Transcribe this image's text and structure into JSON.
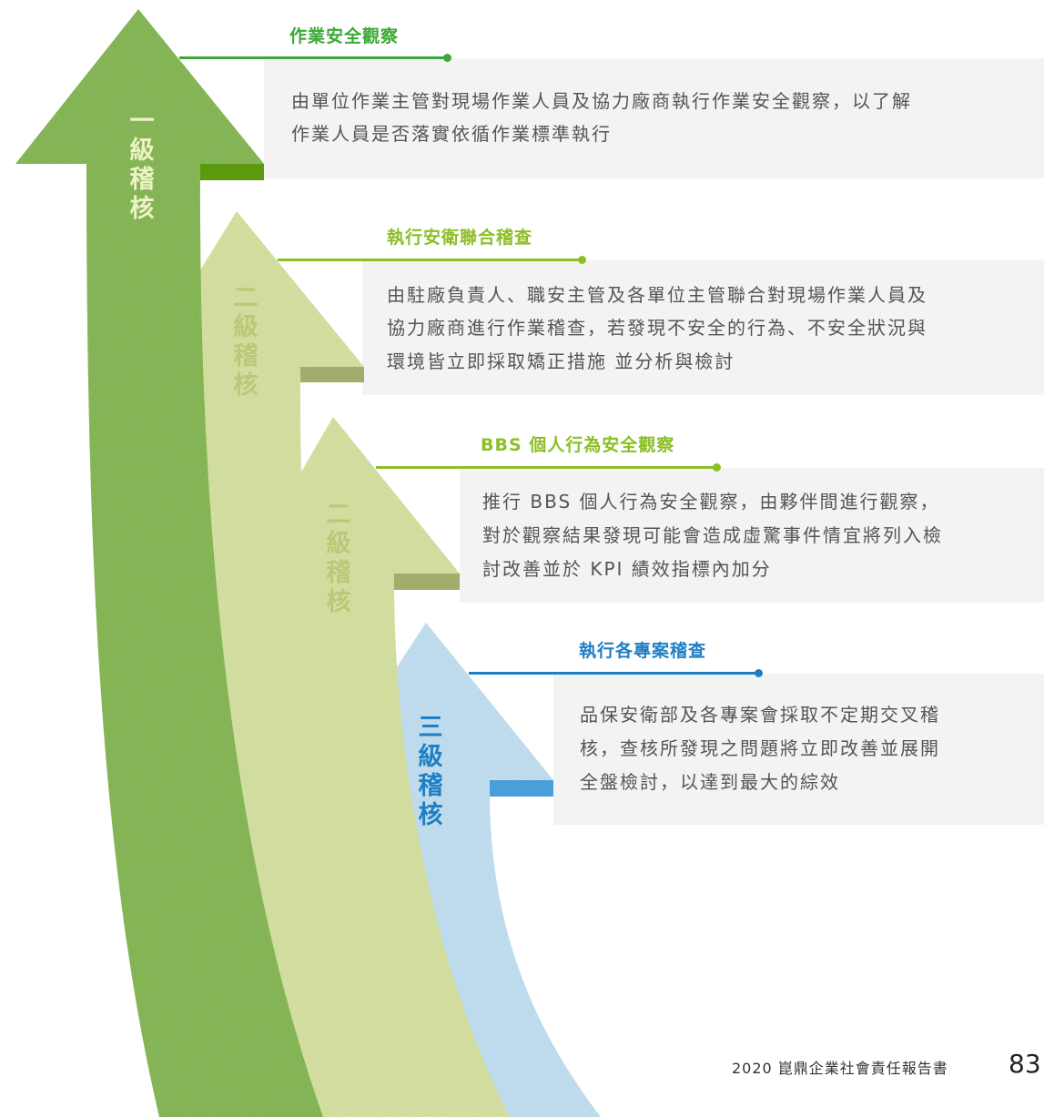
{
  "levels": [
    {
      "label": "一\n級\n稽\n核",
      "title": "作業安全觀察",
      "lines": [
        "由單位作業主管對現場作業人員及協力廠商執行作業安全觀察，以了解",
        "作業人員是否落實依循作業標準執行"
      ]
    },
    {
      "label": "二\n級\n稽\n核",
      "title": "執行安衛聯合稽查",
      "lines": [
        "由駐廠負責人、職安主管及各單位主管聯合對現場作業人員及",
        "協力廠商進行作業稽查，若發現不安全的行為、不安全狀況與",
        "環境皆立即採取矯正措施 並分析與檢討"
      ]
    },
    {
      "label": "二\n級\n稽\n核",
      "title": "BBS 個人行為安全觀察",
      "lines": [
        "推行 BBS 個人行為安全觀察，由夥伴間進行觀察，",
        "對於觀察結果發現可能會造成虛驚事件情宜將列入檢",
        "討改善並於 KPI 績效指標內加分"
      ]
    },
    {
      "label": "三\n級\n稽\n核",
      "title": "執行各專案稽查",
      "lines": [
        "品保安衛部及各專案會採取不定期交叉稽",
        "核，查核所發現之問題將立即改善並展開",
        "全盤檢討，以達到最大的綜效"
      ]
    }
  ],
  "colors": {
    "level1": "#76b31f",
    "level1_dark": "#5b9a0f",
    "level2": "#d6e398",
    "level2_shadow": "#a2ac6c",
    "level4": "#bfe1f5",
    "level4_shadow": "#4a9fd8",
    "title_green": "#3aa935",
    "title_lime": "#8cbf26",
    "title_blue": "#1f7fc4",
    "label_light": "#eef3c6",
    "label_blue": "#1f7fc4"
  },
  "footer": {
    "text": "2020 崑鼎企業社會責任報告書",
    "page": "83"
  }
}
